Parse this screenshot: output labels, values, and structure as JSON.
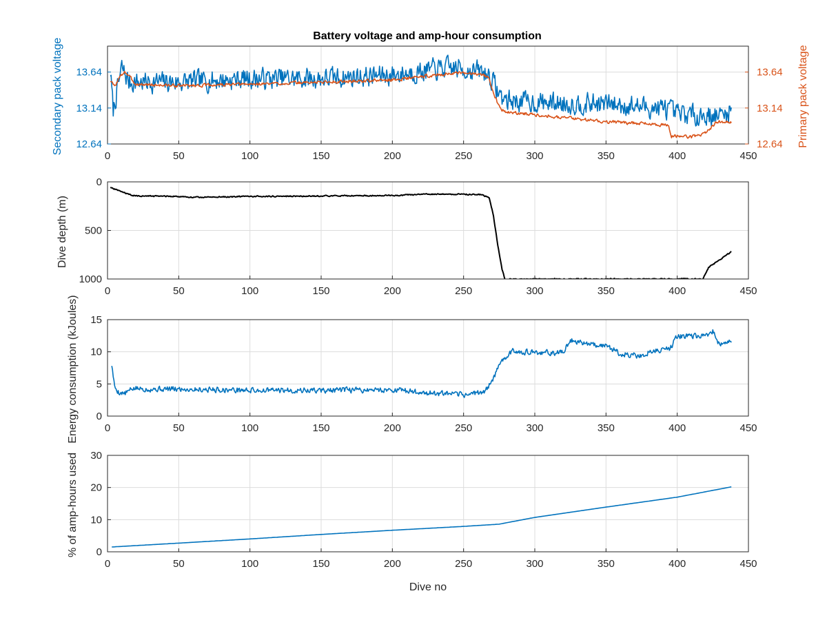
{
  "figure_title": "Battery voltage and amp-hour consumption",
  "colors": {
    "blue": "#0072BD",
    "orange": "#D95319",
    "black": "#000000"
  },
  "chart_data": [
    {
      "type": "line",
      "title": "Battery voltage and amp-hour consumption",
      "xlabel": "",
      "ylabel": "Secondary pack voltage",
      "y2label": "Primary pack voltage",
      "xlim": [
        0,
        450
      ],
      "ylim": [
        12.64,
        14.0
      ],
      "y2lim": [
        12.64,
        14.0
      ],
      "xticks": [
        0,
        50,
        100,
        150,
        200,
        250,
        300,
        350,
        400,
        450
      ],
      "yticks": [
        12.64,
        13.14,
        13.64
      ],
      "ytick_labels": [
        "12.64",
        "13.14",
        "13.64"
      ],
      "y2ticks": [
        12.64,
        13.14,
        13.64
      ],
      "y2tick_labels": [
        "12.64",
        "13.14",
        "13.64"
      ],
      "grid": true,
      "series": [
        {
          "axis": "left",
          "color": "#0072BD",
          "noise": 0.2,
          "seed": 7,
          "x": [
            2,
            4,
            6,
            10,
            15,
            25,
            50,
            100,
            150,
            200,
            240,
            262,
            268,
            272,
            276,
            280,
            300,
            330,
            350,
            380,
            394,
            398,
            410,
            430,
            438
          ],
          "y": [
            13.65,
            13.1,
            13.3,
            13.7,
            13.5,
            13.5,
            13.5,
            13.55,
            13.55,
            13.6,
            13.7,
            13.65,
            13.6,
            13.45,
            13.3,
            13.25,
            13.22,
            13.2,
            13.2,
            13.15,
            13.12,
            13.05,
            13.05,
            13.03,
            13.1
          ]
        },
        {
          "axis": "right",
          "color": "#D95319",
          "noise": 0.03,
          "seed": 3,
          "x": [
            2,
            5,
            8,
            12,
            20,
            50,
            100,
            150,
            200,
            240,
            262,
            268,
            272,
            276,
            280,
            300,
            350,
            380,
            394,
            396,
            400,
            410,
            418,
            423,
            428,
            438
          ],
          "y": [
            13.52,
            13.44,
            13.55,
            13.65,
            13.47,
            13.45,
            13.47,
            13.5,
            13.53,
            13.62,
            13.62,
            13.55,
            13.3,
            13.12,
            13.08,
            13.05,
            12.95,
            12.92,
            12.9,
            12.74,
            12.75,
            12.74,
            12.78,
            12.85,
            12.95,
            12.95
          ]
        }
      ]
    },
    {
      "type": "line",
      "xlabel": "",
      "ylabel": "Dive depth (m)",
      "xlim": [
        0,
        450
      ],
      "ylim": [
        0,
        1000
      ],
      "y_reversed": true,
      "xticks": [
        0,
        50,
        100,
        150,
        200,
        250,
        300,
        350,
        400,
        450
      ],
      "yticks": [
        0,
        500,
        1000
      ],
      "ytick_labels": [
        "0",
        "500",
        "1000"
      ],
      "grid": true,
      "series": [
        {
          "axis": "left",
          "color": "#000000",
          "noise": 8,
          "seed": 11,
          "x": [
            2,
            8,
            15,
            20,
            50,
            60,
            100,
            150,
            200,
            230,
            262,
            268,
            271,
            274,
            277,
            279,
            300,
            350,
            400,
            418,
            422,
            430,
            438
          ],
          "y": [
            60,
            90,
            130,
            145,
            150,
            160,
            150,
            145,
            140,
            125,
            130,
            160,
            350,
            650,
            900,
            1000,
            1000,
            1000,
            1000,
            1000,
            880,
            800,
            720
          ]
        }
      ]
    },
    {
      "type": "line",
      "xlabel": "",
      "ylabel": "Energy consumption (kJoules)",
      "xlim": [
        0,
        450
      ],
      "ylim": [
        0,
        15
      ],
      "xticks": [
        0,
        50,
        100,
        150,
        200,
        250,
        300,
        350,
        400,
        450
      ],
      "yticks": [
        0,
        5,
        10,
        15
      ],
      "ytick_labels": [
        "0",
        "5",
        "10",
        "15"
      ],
      "grid": true,
      "series": [
        {
          "axis": "left",
          "color": "#0072BD",
          "noise": 0.6,
          "seed": 5,
          "x": [
            3,
            5,
            8,
            12,
            18,
            30,
            60,
            100,
            150,
            200,
            230,
            250,
            265,
            270,
            278,
            285,
            300,
            320,
            325,
            340,
            350,
            360,
            375,
            380,
            395,
            400,
            420,
            425,
            430,
            438
          ],
          "y": [
            8,
            4.5,
            3.7,
            3.5,
            4.3,
            4.2,
            4.2,
            4.0,
            4.0,
            4.1,
            3.5,
            3.3,
            3.8,
            5.5,
            9.0,
            10.2,
            9.8,
            9.9,
            11.8,
            11.2,
            11.0,
            9.7,
            9.3,
            10.0,
            10.5,
            12.5,
            12.3,
            13.2,
            11.0,
            11.5
          ]
        }
      ]
    },
    {
      "type": "line",
      "xlabel": "Dive no",
      "ylabel": "% of amp-hours used",
      "xlim": [
        0,
        450
      ],
      "ylim": [
        0,
        30
      ],
      "xticks": [
        0,
        50,
        100,
        150,
        200,
        250,
        300,
        350,
        400,
        450
      ],
      "yticks": [
        0,
        10,
        20,
        30
      ],
      "ytick_labels": [
        "0",
        "10",
        "20",
        "30"
      ],
      "grid": true,
      "series": [
        {
          "axis": "left",
          "color": "#0072BD",
          "noise": 0,
          "seed": 1,
          "x": [
            3,
            50,
            100,
            150,
            200,
            250,
            275,
            300,
            350,
            400,
            438
          ],
          "y": [
            1.5,
            2.7,
            4.0,
            5.4,
            6.7,
            7.9,
            8.6,
            10.7,
            13.9,
            17.0,
            20.2
          ]
        }
      ]
    }
  ]
}
